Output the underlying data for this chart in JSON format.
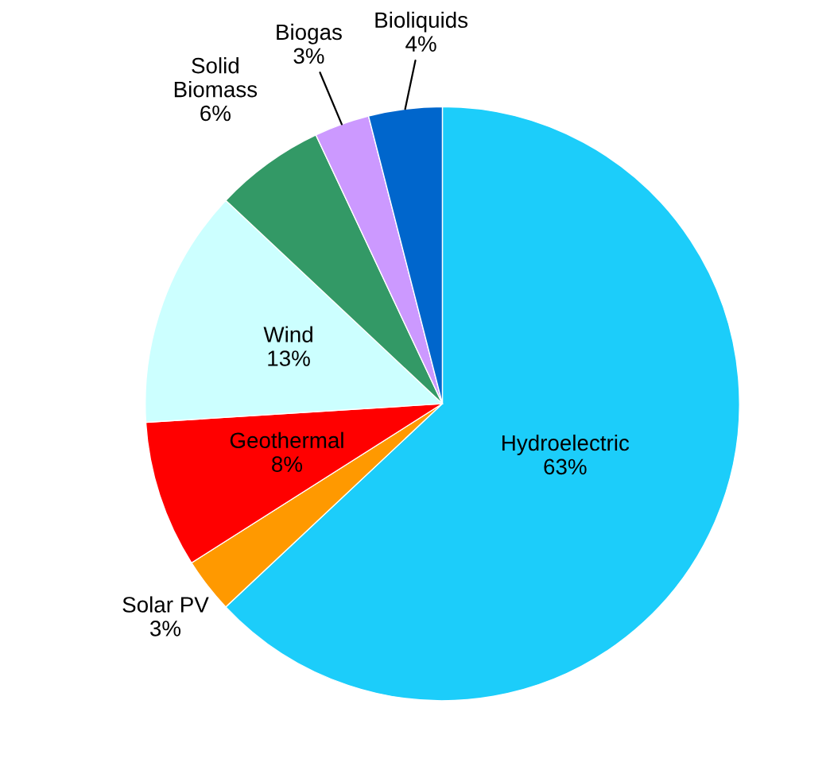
{
  "chart_data": {
    "type": "pie",
    "categories": [
      "Hydroelectric",
      "Solar PV",
      "Geothermal",
      "Wind",
      "Solid\nBiomass",
      "Biogas",
      "Bioliquids"
    ],
    "values": [
      63,
      3,
      8,
      13,
      6,
      3,
      4
    ],
    "value_labels": [
      "63%",
      "3%",
      "8%",
      "13%",
      "6%",
      "3%",
      "4%"
    ],
    "colors": [
      "#1ccdfa",
      "#ff9900",
      "#ff0000",
      "#ccffff",
      "#339966",
      "#cc99ff",
      "#0066cc"
    ],
    "legend": false
  }
}
